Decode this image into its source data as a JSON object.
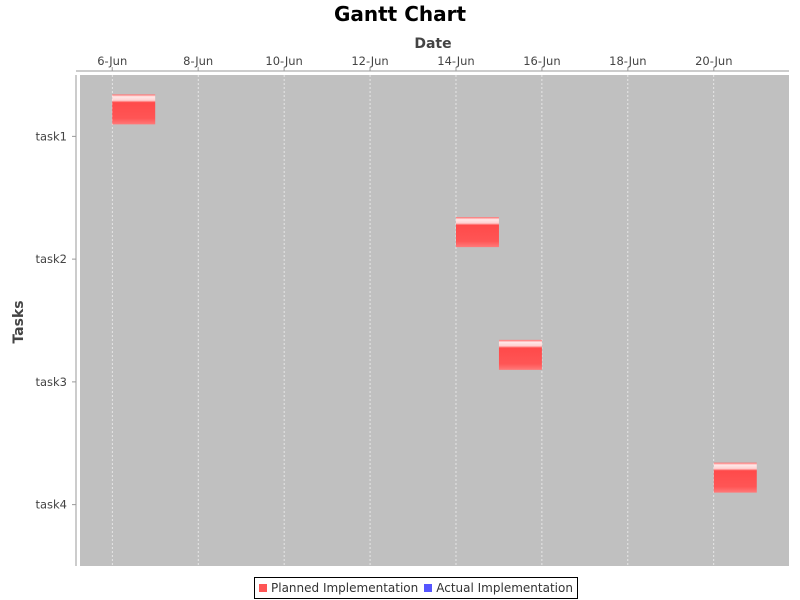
{
  "chart_data": {
    "type": "gantt",
    "title": "Gantt Chart",
    "xlabel": "Date",
    "ylabel": "Tasks",
    "x_ticks": [
      "6-Jun",
      "8-Jun",
      "10-Jun",
      "12-Jun",
      "14-Jun",
      "16-Jun",
      "18-Jun",
      "20-Jun"
    ],
    "x_range": [
      "5-Jun 06:00",
      "21-Jun 18:00"
    ],
    "grid": true,
    "legend_position": "bottom",
    "series": [
      {
        "name": "Planned Implementation",
        "color": "#ff5555",
        "tasks": [
          {
            "task": "task1",
            "start": "6-Jun",
            "end": "7-Jun"
          },
          {
            "task": "task2",
            "start": "14-Jun",
            "end": "15-Jun"
          },
          {
            "task": "task3",
            "start": "15-Jun",
            "end": "16-Jun"
          },
          {
            "task": "task4",
            "start": "20-Jun",
            "end": "21-Jun"
          }
        ]
      },
      {
        "name": "Actual Implementation",
        "color": "#5555ff",
        "tasks": []
      }
    ],
    "categories": [
      "task1",
      "task2",
      "task3",
      "task4"
    ],
    "plot_background": "#c0c0c0"
  }
}
